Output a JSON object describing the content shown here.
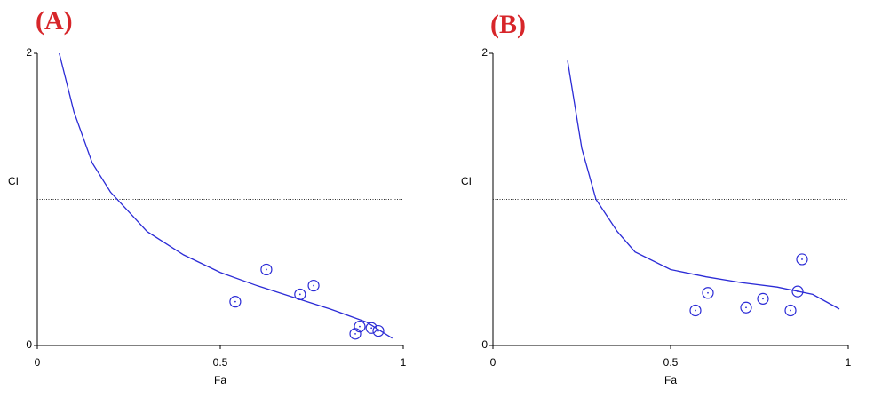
{
  "chart_data": [
    {
      "type": "scatter",
      "title": "(A)",
      "xlabel": "Fa",
      "ylabel": "CI",
      "xlim": [
        0,
        1
      ],
      "ylim": [
        0,
        2
      ],
      "xticks": [
        0,
        0.5,
        1
      ],
      "yticks": [
        0,
        2
      ],
      "hline": 1,
      "series": [
        {
          "color": "#2b2bd6",
          "marker": "circle",
          "x": [
            0.541,
            0.626,
            0.718,
            0.755,
            0.869,
            0.881,
            0.913,
            0.932
          ],
          "values": [
            0.3,
            0.52,
            0.35,
            0.41,
            0.08,
            0.13,
            0.12,
            0.1
          ]
        },
        {
          "color": "#2b2bd6",
          "marker": "none",
          "x": [
            0.06,
            0.1,
            0.15,
            0.2,
            0.3,
            0.4,
            0.5,
            0.6,
            0.7,
            0.8,
            0.9,
            0.97
          ],
          "values": [
            2.0,
            1.6,
            1.25,
            1.05,
            0.78,
            0.62,
            0.5,
            0.41,
            0.33,
            0.25,
            0.16,
            0.05
          ]
        }
      ]
    },
    {
      "type": "scatter",
      "title": "(B)",
      "xlabel": "Fa",
      "ylabel": "CI",
      "xlim": [
        0,
        1
      ],
      "ylim": [
        0,
        2
      ],
      "xticks": [
        0,
        0.5,
        1
      ],
      "yticks": [
        0,
        2
      ],
      "hline": 1,
      "series": [
        {
          "color": "#2b2bd6",
          "marker": "circle",
          "x": [
            0.57,
            0.605,
            0.7125,
            0.76,
            0.8375,
            0.8575,
            0.87
          ],
          "values": [
            0.24,
            0.36,
            0.26,
            0.32,
            0.24,
            0.37,
            0.59
          ]
        },
        {
          "color": "#2b2bd6",
          "marker": "none",
          "x": [
            0.21,
            0.25,
            0.29,
            0.35,
            0.4,
            0.5,
            0.6,
            0.7,
            0.8,
            0.9,
            0.975
          ],
          "values": [
            1.95,
            1.35,
            1.0,
            0.78,
            0.64,
            0.52,
            0.47,
            0.43,
            0.4,
            0.35,
            0.25
          ]
        }
      ]
    }
  ]
}
